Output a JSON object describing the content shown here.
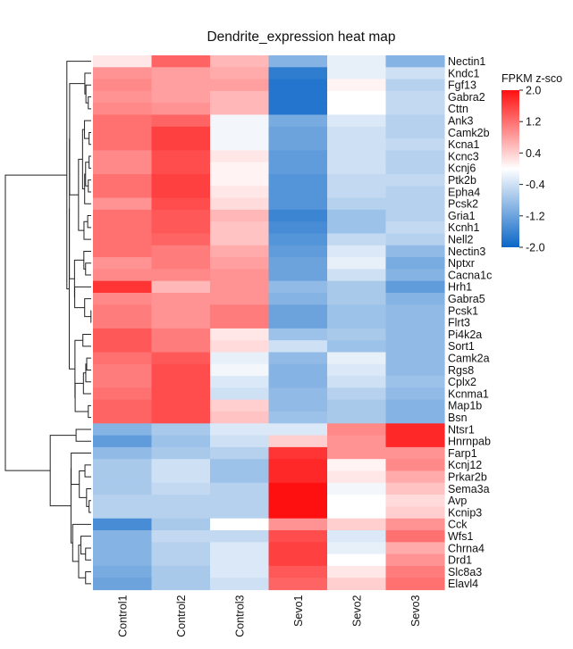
{
  "chart_data": {
    "type": "heatmap",
    "title": "Dendrite_expression heat map",
    "columns": [
      "Control1",
      "Control2",
      "Control3",
      "Sevo1",
      "Sevo2",
      "Sevo3"
    ],
    "rows": [
      "Nectin1",
      "Kndc1",
      "Fgf13",
      "Gabra2",
      "Cttn",
      "Ank3",
      "Camk2b",
      "Kcna1",
      "Kcnc3",
      "Kcnj6",
      "Ptk2b",
      "Epha4",
      "Pcsk2",
      "Gria1",
      "Kcnh1",
      "Nell2",
      "Nectin3",
      "Nptxr",
      "Cacna1c",
      "Hrh1",
      "Gabra5",
      "Pcsk1",
      "Flrt3",
      "Pi4k2a",
      "Sort1",
      "Camk2a",
      "Rgs8",
      "Cplx2",
      "Kcnma1",
      "Map1b",
      "Bsn",
      "Ntsr1",
      "Hnrnpab",
      "Farp1",
      "Kcnj12",
      "Prkar2b",
      "Sema3a",
      "Avp",
      "Kcnip3",
      "Cck",
      "Wfs1",
      "Chrna4",
      "Drd1",
      "Slc8a3",
      "Elavl4"
    ],
    "values": [
      [
        0.2,
        1.3,
        0.6,
        -1.0,
        -0.2,
        -1.0
      ],
      [
        0.9,
        0.8,
        0.7,
        -1.7,
        -0.2,
        -0.4
      ],
      [
        1.0,
        0.8,
        0.8,
        -1.8,
        0.1,
        -0.6
      ],
      [
        0.9,
        0.8,
        0.6,
        -1.8,
        0.0,
        -0.5
      ],
      [
        1.0,
        0.9,
        0.6,
        -1.8,
        0.0,
        -0.5
      ],
      [
        1.2,
        1.3,
        -0.1,
        -1.1,
        -0.3,
        -0.6
      ],
      [
        1.2,
        1.6,
        -0.1,
        -1.2,
        -0.4,
        -0.6
      ],
      [
        1.2,
        1.6,
        -0.1,
        -1.2,
        -0.4,
        -0.5
      ],
      [
        1.0,
        1.5,
        0.2,
        -1.3,
        -0.4,
        -0.6
      ],
      [
        1.0,
        1.5,
        0.1,
        -1.3,
        -0.4,
        -0.6
      ],
      [
        1.2,
        1.6,
        0.1,
        -1.4,
        -0.5,
        -0.5
      ],
      [
        1.2,
        1.6,
        0.2,
        -1.4,
        -0.5,
        -0.6
      ],
      [
        0.9,
        1.5,
        0.3,
        -1.4,
        -0.6,
        -0.6
      ],
      [
        1.2,
        1.4,
        0.6,
        -1.6,
        -0.8,
        -0.6
      ],
      [
        1.2,
        1.4,
        0.5,
        -1.5,
        -0.8,
        -0.5
      ],
      [
        1.2,
        1.3,
        0.5,
        -1.4,
        -0.5,
        -0.6
      ],
      [
        1.2,
        1.1,
        0.7,
        -1.3,
        -0.3,
        -0.9
      ],
      [
        0.9,
        1.1,
        0.8,
        -1.2,
        -0.2,
        -1.1
      ],
      [
        1.0,
        1.0,
        0.9,
        -1.2,
        -0.4,
        -1.0
      ],
      [
        1.7,
        0.6,
        0.9,
        -0.9,
        -0.7,
        -1.3
      ],
      [
        1.0,
        0.9,
        0.9,
        -1.0,
        -0.7,
        -1.0
      ],
      [
        1.1,
        0.9,
        1.1,
        -1.2,
        -0.8,
        -0.9
      ],
      [
        1.1,
        0.9,
        1.1,
        -1.2,
        -0.8,
        -0.9
      ],
      [
        1.4,
        1.1,
        0.2,
        -0.8,
        -0.7,
        -0.9
      ],
      [
        1.4,
        1.1,
        0.3,
        -0.4,
        -0.8,
        -0.9
      ],
      [
        1.2,
        1.4,
        -0.2,
        -0.9,
        -0.2,
        -0.9
      ],
      [
        1.1,
        1.5,
        -0.1,
        -1.0,
        -0.3,
        -0.9
      ],
      [
        1.1,
        1.5,
        -0.3,
        -1.0,
        -0.4,
        -0.8
      ],
      [
        1.2,
        1.5,
        -0.4,
        -0.9,
        -0.6,
        -0.9
      ],
      [
        1.3,
        1.5,
        0.4,
        -0.9,
        -0.7,
        -1.0
      ],
      [
        1.3,
        1.5,
        0.5,
        -0.8,
        -0.7,
        -1.0
      ],
      [
        -1.0,
        -0.7,
        -0.3,
        -0.3,
        1.0,
        1.8
      ],
      [
        -1.3,
        -0.8,
        -0.4,
        0.4,
        0.9,
        1.8
      ],
      [
        -0.9,
        -0.7,
        -0.6,
        1.7,
        0.9,
        0.9
      ],
      [
        -0.7,
        -0.4,
        -0.8,
        1.8,
        0.1,
        1.0
      ],
      [
        -0.7,
        -0.4,
        -0.8,
        1.8,
        0.2,
        0.7
      ],
      [
        -0.7,
        -0.5,
        -0.6,
        2.0,
        -0.1,
        0.5
      ],
      [
        -0.6,
        -0.6,
        -0.6,
        2.0,
        0.0,
        0.3
      ],
      [
        -0.6,
        -0.6,
        -0.6,
        2.0,
        0.0,
        0.4
      ],
      [
        -1.5,
        -0.7,
        0.0,
        0.9,
        0.4,
        0.9
      ],
      [
        -1.0,
        -0.5,
        -0.5,
        1.5,
        -0.3,
        1.2
      ],
      [
        -1.0,
        -0.6,
        -0.3,
        1.6,
        -0.2,
        0.7
      ],
      [
        -1.0,
        -0.6,
        -0.3,
        1.6,
        0.0,
        0.9
      ],
      [
        -1.1,
        -0.7,
        -0.3,
        1.4,
        0.2,
        1.1
      ],
      [
        -1.2,
        -0.7,
        -0.4,
        1.3,
        0.4,
        1.2
      ]
    ],
    "legend": {
      "title": "FPKM z-sco",
      "ticks": [
        "2.0",
        "1.2",
        "0.4",
        "-0.4",
        "-1.2",
        "-2.0"
      ],
      "min": -2.0,
      "max": 2.0,
      "placement": "top-right"
    },
    "colors": {
      "low": "#0a66c7",
      "mid": "#ffffff",
      "high": "#ff1010"
    },
    "row_dendrogram": true
  }
}
